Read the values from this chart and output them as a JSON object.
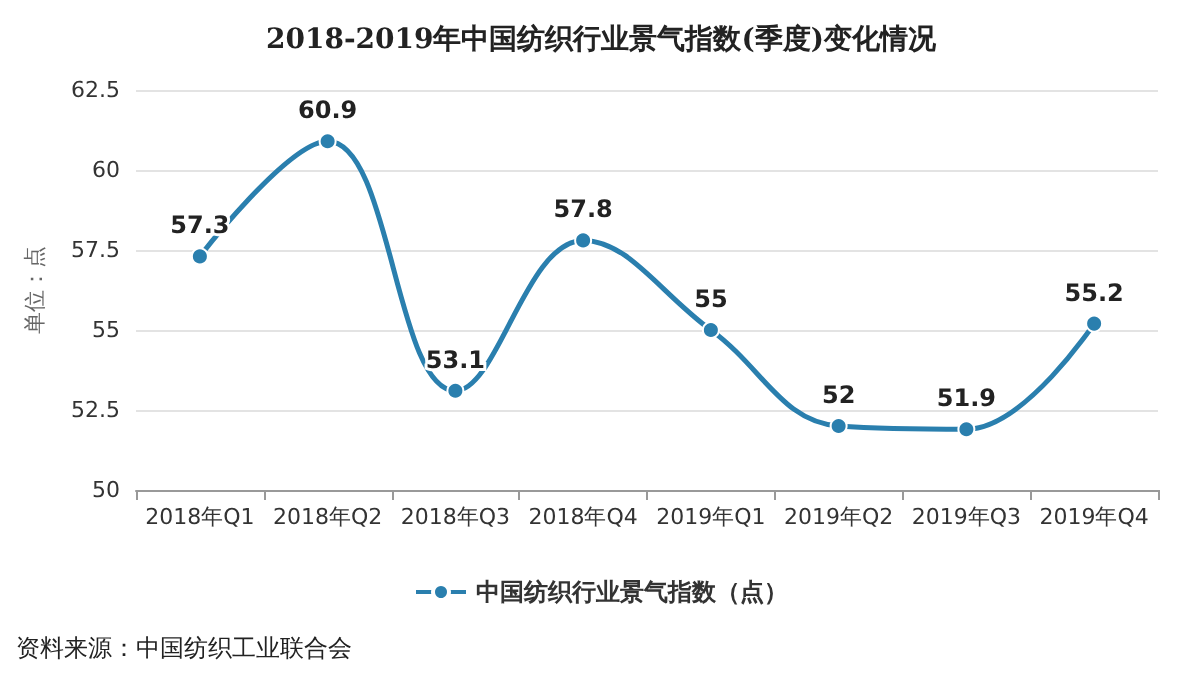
{
  "chart_data": {
    "type": "line",
    "title": "2018-2019年中国纺织行业景气指数(季度)变化情况",
    "ylabel": "单位：点",
    "categories": [
      "2018年Q1",
      "2018年Q2",
      "2018年Q3",
      "2018年Q4",
      "2019年Q1",
      "2019年Q2",
      "2019年Q3",
      "2019年Q4"
    ],
    "series": [
      {
        "name": "中国纺织行业景气指数（点）",
        "color": "#2a7fae",
        "values": [
          57.3,
          60.9,
          53.1,
          57.8,
          55,
          52,
          51.9,
          55.2
        ]
      }
    ],
    "ylim": [
      50,
      62.5
    ],
    "yticks": [
      50,
      52.5,
      55,
      57.5,
      60,
      62.5
    ],
    "grid": "y",
    "legend": "bottom",
    "marker": "circle",
    "data_labels": true,
    "annotations": [
      "资料来源：中国纺织工业联合会"
    ]
  }
}
